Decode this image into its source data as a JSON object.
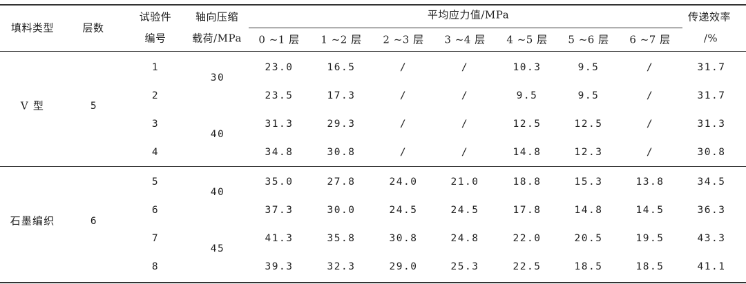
{
  "header": {
    "fill_type": "填料类型",
    "layers": "层数",
    "specimen_line1": "试验件",
    "specimen_line2": "编号",
    "load_line1": "轴向压缩",
    "load_line2": "载荷/MPa",
    "avg_stress": "平均应力值/MPa",
    "efficiency_line1": "传递效率",
    "efficiency_line2": "/%",
    "stress_columns": [
      "0 ~1 层",
      "1 ~2 层",
      "2 ~3 层",
      "3 ~4 层",
      "4 ~5 层",
      "5 ~6 层",
      "6 ~7 层"
    ]
  },
  "groups": [
    {
      "fill_type": "V 型",
      "layers": "5",
      "loads": [
        "30",
        "40"
      ],
      "rows": [
        {
          "id": "1",
          "stress": [
            "23.0",
            "16.5",
            "/",
            "/",
            "10.3",
            "9.5",
            "/"
          ],
          "efficiency": "31.7"
        },
        {
          "id": "2",
          "stress": [
            "23.5",
            "17.3",
            "/",
            "/",
            "9.5",
            "9.5",
            "/"
          ],
          "efficiency": "31.7"
        },
        {
          "id": "3",
          "stress": [
            "31.3",
            "29.3",
            "/",
            "/",
            "12.5",
            "12.5",
            "/"
          ],
          "efficiency": "31.3"
        },
        {
          "id": "4",
          "stress": [
            "34.8",
            "30.8",
            "/",
            "/",
            "14.8",
            "12.3",
            "/"
          ],
          "efficiency": "30.8"
        }
      ]
    },
    {
      "fill_type": "石墨编织",
      "layers": "6",
      "loads": [
        "40",
        "45"
      ],
      "rows": [
        {
          "id": "5",
          "stress": [
            "35.0",
            "27.8",
            "24.0",
            "21.0",
            "18.8",
            "15.3",
            "13.8"
          ],
          "efficiency": "34.5"
        },
        {
          "id": "6",
          "stress": [
            "37.3",
            "30.0",
            "24.5",
            "24.5",
            "17.8",
            "14.8",
            "14.5"
          ],
          "efficiency": "36.3"
        },
        {
          "id": "7",
          "stress": [
            "41.3",
            "35.8",
            "30.8",
            "24.8",
            "22.0",
            "20.5",
            "19.5"
          ],
          "efficiency": "43.3"
        },
        {
          "id": "8",
          "stress": [
            "39.3",
            "32.3",
            "29.0",
            "25.3",
            "22.5",
            "18.5",
            "18.5"
          ],
          "efficiency": "41.1"
        }
      ]
    }
  ]
}
